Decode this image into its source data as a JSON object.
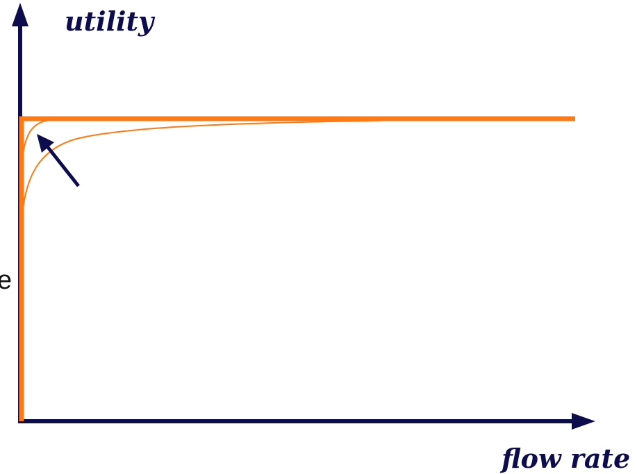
{
  "axes": {
    "y_label": "utility",
    "x_label": "flow rate"
  },
  "stray_text": "e",
  "colors": {
    "axis": "#0d0d4d",
    "curve": "#ff7a14",
    "arrow": "#0d0d4d"
  },
  "curves": [
    {
      "name": "step-curve",
      "style": "thick"
    },
    {
      "name": "sharp-knee-curve",
      "style": "thin"
    },
    {
      "name": "gradual-curve",
      "style": "thin"
    }
  ],
  "annotation": {
    "icon": "arrow-icon"
  }
}
